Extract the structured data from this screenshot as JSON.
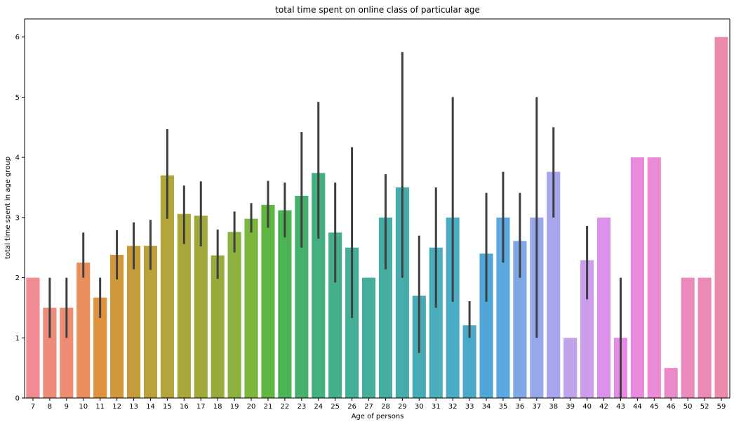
{
  "chart_data": {
    "type": "bar",
    "title": "total time spent on online class of particular age",
    "xlabel": "Age of persons",
    "ylabel": "total time spent in age group",
    "ylim": [
      0,
      6.3
    ],
    "yticks": [
      0,
      1,
      2,
      3,
      4,
      5,
      6
    ],
    "grid": false,
    "legend": "none",
    "categories": [
      "7",
      "8",
      "9",
      "10",
      "11",
      "12",
      "13",
      "14",
      "15",
      "16",
      "17",
      "18",
      "19",
      "20",
      "21",
      "22",
      "23",
      "24",
      "25",
      "26",
      "27",
      "28",
      "29",
      "30",
      "31",
      "32",
      "33",
      "34",
      "35",
      "36",
      "37",
      "38",
      "39",
      "40",
      "42",
      "43",
      "44",
      "45",
      "46",
      "50",
      "52",
      "59"
    ],
    "values": [
      2.0,
      1.5,
      1.5,
      2.25,
      1.67,
      2.38,
      2.53,
      2.53,
      3.7,
      3.06,
      3.03,
      2.37,
      2.76,
      2.98,
      3.21,
      3.12,
      3.36,
      3.74,
      2.75,
      2.5,
      2.0,
      3.0,
      3.5,
      1.7,
      2.5,
      3.0,
      1.21,
      2.4,
      3.0,
      2.61,
      3.0,
      3.76,
      1.0,
      2.29,
      3.0,
      1.0,
      4.0,
      4.0,
      0.5,
      2.0,
      2.0,
      6.0
    ],
    "error_low": [
      null,
      1.0,
      1.0,
      2.0,
      1.33,
      1.97,
      2.14,
      2.13,
      2.98,
      2.56,
      2.52,
      1.98,
      2.42,
      2.75,
      2.83,
      2.67,
      2.5,
      2.65,
      1.92,
      1.33,
      null,
      2.14,
      2.0,
      0.75,
      1.5,
      1.6,
      1.0,
      1.6,
      2.25,
      2.0,
      1.0,
      3.0,
      null,
      1.64,
      null,
      0.0,
      null,
      null,
      null,
      null,
      null,
      null
    ],
    "error_high": [
      null,
      2.0,
      2.0,
      2.75,
      2.0,
      2.79,
      2.92,
      2.96,
      4.47,
      3.53,
      3.6,
      2.8,
      3.1,
      3.24,
      3.61,
      3.58,
      4.42,
      4.92,
      3.58,
      4.17,
      null,
      3.72,
      5.75,
      2.7,
      3.5,
      5.0,
      1.61,
      3.41,
      3.76,
      3.41,
      5.0,
      4.5,
      null,
      2.86,
      null,
      2.0,
      null,
      null,
      null,
      null,
      null,
      null
    ],
    "colors": [
      "#f08b91",
      "#ef8b7b",
      "#ed8c73",
      "#e88f5c",
      "#e0913d",
      "#d1983b",
      "#c69c3a",
      "#bba13a",
      "#b2a53a",
      "#aaa73a",
      "#a2a93b",
      "#98aa3b",
      "#8db13e",
      "#7cb63f",
      "#5fb741",
      "#4db453",
      "#46b16e",
      "#45b07f",
      "#45ae8c",
      "#45ae96",
      "#46ad9d",
      "#47aca4",
      "#46acac",
      "#47abb3",
      "#49adbb",
      "#4badc5",
      "#4ca8c7",
      "#4fa7d7",
      "#5ca8e0",
      "#7ea8e6",
      "#97a7e9",
      "#a7a6ec",
      "#bfa4ec",
      "#cc9deb",
      "#da92ea",
      "#e58be6",
      "#e88bdc",
      "#ea8bd4",
      "#ea8bc9",
      "#eb8abd",
      "#eb8ab5",
      "#ea8ba9"
    ]
  }
}
